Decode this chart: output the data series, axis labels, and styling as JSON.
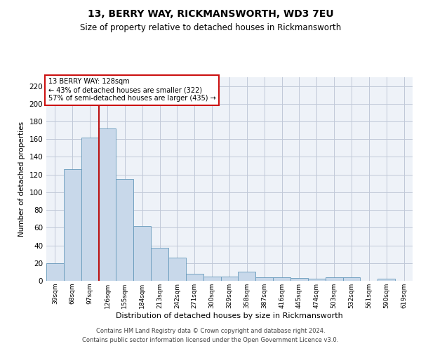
{
  "title": "13, BERRY WAY, RICKMANSWORTH, WD3 7EU",
  "subtitle": "Size of property relative to detached houses in Rickmansworth",
  "xlabel": "Distribution of detached houses by size in Rickmansworth",
  "ylabel": "Number of detached properties",
  "categories": [
    "39sqm",
    "68sqm",
    "97sqm",
    "126sqm",
    "155sqm",
    "184sqm",
    "213sqm",
    "242sqm",
    "271sqm",
    "300sqm",
    "329sqm",
    "358sqm",
    "387sqm",
    "416sqm",
    "445sqm",
    "474sqm",
    "503sqm",
    "532sqm",
    "561sqm",
    "590sqm",
    "619sqm"
  ],
  "values": [
    20,
    126,
    162,
    172,
    115,
    62,
    37,
    26,
    8,
    5,
    5,
    10,
    4,
    4,
    3,
    2,
    4,
    4,
    0,
    2,
    0
  ],
  "bar_color": "#c8d8ea",
  "bar_edge_color": "#6699bb",
  "grid_color": "#c0c8d8",
  "bg_color": "#eef2f8",
  "vline_color": "#bb1111",
  "vline_x": 2.5,
  "annotation_box_edge": "#cc1111",
  "annotation_line1": "13 BERRY WAY: 128sqm",
  "annotation_line2": "← 43% of detached houses are smaller (322)",
  "annotation_line3": "57% of semi-detached houses are larger (435) →",
  "footer_line1": "Contains HM Land Registry data © Crown copyright and database right 2024.",
  "footer_line2": "Contains public sector information licensed under the Open Government Licence v3.0.",
  "ylim": [
    0,
    230
  ],
  "yticks": [
    0,
    20,
    40,
    60,
    80,
    100,
    120,
    140,
    160,
    180,
    200,
    220
  ],
  "title_fontsize": 10,
  "subtitle_fontsize": 8.5,
  "ylabel_fontsize": 7.5,
  "xlabel_fontsize": 8,
  "ytick_fontsize": 7.5,
  "xtick_fontsize": 6.5,
  "annotation_fontsize": 7,
  "footer_fontsize": 6
}
